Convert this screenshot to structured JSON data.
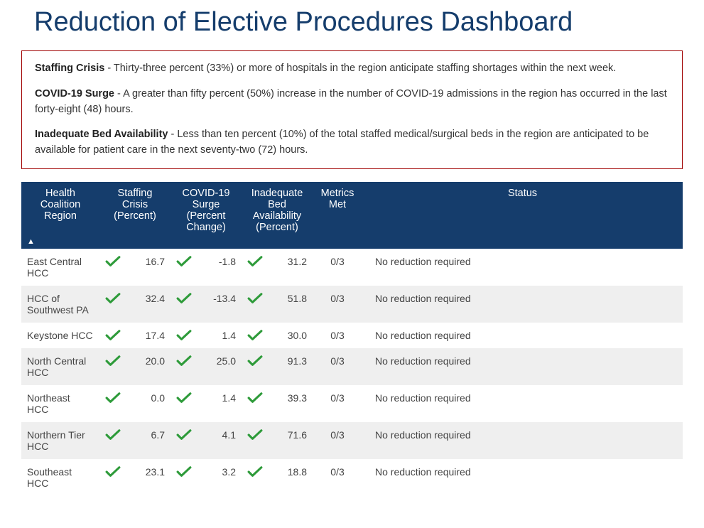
{
  "title": "Reduction of Elective Procedures Dashboard",
  "definitions": [
    {
      "label": "Staffing Crisis",
      "text": " - Thirty-three percent (33%) or more of hospitals in the region anticipate staffing shortages within the next week."
    },
    {
      "label": "COVID-19 Surge",
      "text": " - A greater than fifty percent (50%) increase in the number of COVID-19 admissions in the region has occurred in the last forty-eight (48) hours."
    },
    {
      "label": "Inadequate Bed Availability",
      "text": " - Less than ten percent (10%) of the total staffed medical/surgical beds in the region are anticipated to be available for patient care in the next seventy-two (72) hours."
    }
  ],
  "table": {
    "columns": {
      "region": "Health Coalition Region",
      "staffing": "Staffing Crisis (Percent)",
      "surge": "COVID-19 Surge (Percent Change)",
      "bed": "Inadequate Bed Availability (Percent)",
      "metrics_met": "Metrics Met",
      "status": "Status"
    },
    "rows": [
      {
        "region": "East Central HCC",
        "staffing_ok": true,
        "staffing": "16.7",
        "surge_ok": true,
        "surge": "-1.8",
        "bed_ok": true,
        "bed": "31.2",
        "metrics_met": "0/3",
        "status": "No reduction required"
      },
      {
        "region": "HCC of Southwest PA",
        "staffing_ok": true,
        "staffing": "32.4",
        "surge_ok": true,
        "surge": "-13.4",
        "bed_ok": true,
        "bed": "51.8",
        "metrics_met": "0/3",
        "status": "No reduction required"
      },
      {
        "region": "Keystone HCC",
        "staffing_ok": true,
        "staffing": "17.4",
        "surge_ok": true,
        "surge": "1.4",
        "bed_ok": true,
        "bed": "30.0",
        "metrics_met": "0/3",
        "status": "No reduction required"
      },
      {
        "region": "North Central HCC",
        "staffing_ok": true,
        "staffing": "20.0",
        "surge_ok": true,
        "surge": "25.0",
        "bed_ok": true,
        "bed": "91.3",
        "metrics_met": "0/3",
        "status": "No reduction required"
      },
      {
        "region": "Northeast HCC",
        "staffing_ok": true,
        "staffing": "0.0",
        "surge_ok": true,
        "surge": "1.4",
        "bed_ok": true,
        "bed": "39.3",
        "metrics_met": "0/3",
        "status": "No reduction required"
      },
      {
        "region": "Northern Tier HCC",
        "staffing_ok": true,
        "staffing": "6.7",
        "surge_ok": true,
        "surge": "4.1",
        "bed_ok": true,
        "bed": "71.6",
        "metrics_met": "0/3",
        "status": "No reduction required"
      },
      {
        "region": "Southeast HCC",
        "staffing_ok": true,
        "staffing": "23.1",
        "surge_ok": true,
        "surge": "3.2",
        "bed_ok": true,
        "bed": "18.8",
        "metrics_met": "0/3",
        "status": "No reduction required"
      }
    ]
  },
  "colors": {
    "title_color": "#153d6c",
    "header_bg": "#153d6c",
    "header_text": "#ffffff",
    "definitions_border": "#a00000",
    "row_alt_bg": "#efefef",
    "check_color": "#2e9b3a",
    "body_text": "#444444"
  }
}
